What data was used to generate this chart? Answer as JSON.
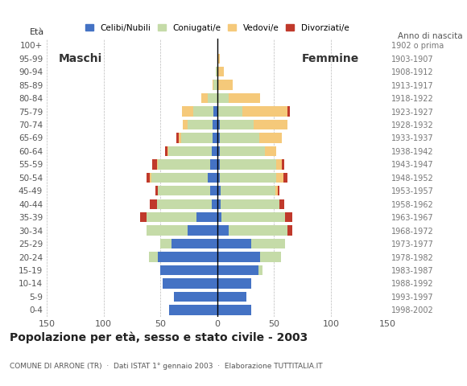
{
  "age_groups": [
    "0-4",
    "5-9",
    "10-14",
    "15-19",
    "20-24",
    "25-29",
    "30-34",
    "35-39",
    "40-44",
    "45-49",
    "50-54",
    "55-59",
    "60-64",
    "65-69",
    "70-74",
    "75-79",
    "80-84",
    "85-89",
    "90-94",
    "95-99",
    "100+"
  ],
  "birth_years": [
    "1998-2002",
    "1993-1997",
    "1988-1992",
    "1983-1987",
    "1978-1982",
    "1973-1977",
    "1968-1972",
    "1963-1967",
    "1958-1962",
    "1953-1957",
    "1948-1952",
    "1943-1947",
    "1938-1942",
    "1933-1937",
    "1928-1932",
    "1923-1927",
    "1918-1922",
    "1913-1917",
    "1908-1912",
    "1903-1907",
    "1902 o prima"
  ],
  "males": {
    "celibi": [
      42,
      38,
      48,
      50,
      52,
      40,
      26,
      18,
      5,
      6,
      8,
      6,
      5,
      4,
      4,
      3,
      0,
      0,
      0,
      0,
      0
    ],
    "coniugati": [
      0,
      0,
      0,
      0,
      8,
      10,
      36,
      44,
      48,
      46,
      50,
      46,
      38,
      28,
      22,
      18,
      8,
      3,
      1,
      0,
      0
    ],
    "vedovi": [
      0,
      0,
      0,
      0,
      0,
      0,
      0,
      0,
      0,
      0,
      1,
      1,
      1,
      2,
      4,
      10,
      6,
      1,
      0,
      0,
      0
    ],
    "divorziati": [
      0,
      0,
      0,
      0,
      0,
      0,
      0,
      6,
      6,
      2,
      3,
      4,
      2,
      2,
      0,
      0,
      0,
      0,
      0,
      0,
      0
    ]
  },
  "females": {
    "celibi": [
      30,
      26,
      30,
      36,
      38,
      30,
      10,
      4,
      3,
      3,
      2,
      2,
      2,
      2,
      2,
      0,
      0,
      0,
      0,
      0,
      0
    ],
    "coniugati": [
      0,
      0,
      0,
      4,
      18,
      30,
      52,
      56,
      52,
      48,
      50,
      50,
      40,
      35,
      30,
      22,
      10,
      0,
      0,
      0,
      0
    ],
    "vedovi": [
      0,
      0,
      0,
      0,
      0,
      0,
      0,
      0,
      0,
      2,
      6,
      5,
      10,
      20,
      30,
      40,
      28,
      14,
      6,
      2,
      0
    ],
    "divorziati": [
      0,
      0,
      0,
      0,
      0,
      0,
      4,
      6,
      4,
      2,
      4,
      2,
      0,
      0,
      0,
      2,
      0,
      0,
      0,
      0,
      0
    ]
  },
  "colors": {
    "celibi": "#4472c4",
    "coniugati": "#c5dba8",
    "vedovi": "#f5c97a",
    "divorziati": "#c0392b"
  },
  "legend_labels": [
    "Celibi/Nubili",
    "Coniugati/e",
    "Vedovi/e",
    "Divorziati/e"
  ],
  "title": "Popolazione per età, sesso e stato civile - 2003",
  "subtitle": "COMUNE DI ARRONE (TR)  ·  Dati ISTAT 1° gennaio 2003  ·  Elaborazione TUTTITALIA.IT",
  "label_maschi": "Maschi",
  "label_femmine": "Femmine",
  "label_eta": "Età",
  "label_anno": "Anno di nascita",
  "xlim": 150,
  "background_color": "#ffffff"
}
